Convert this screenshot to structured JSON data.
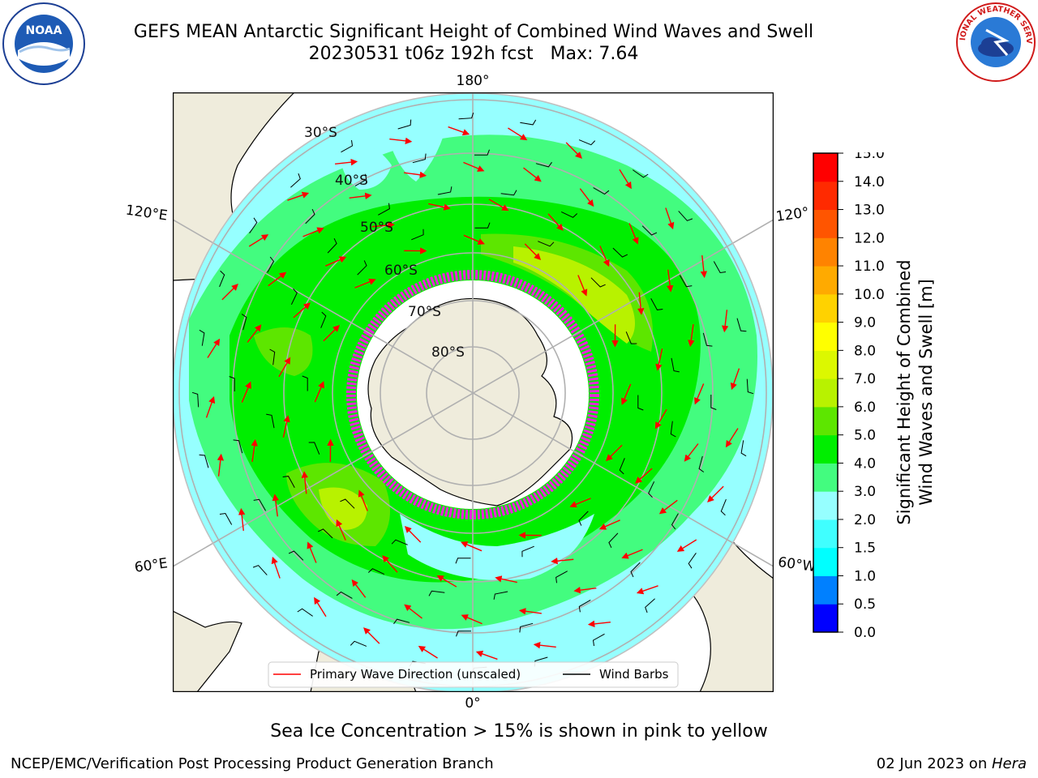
{
  "title": {
    "line1": "GEFS MEAN Antarctic Significant Height of Combined Wind Waves and Swell",
    "line2": "20230531 t06z 192h fcst   Max: 7.64"
  },
  "logos": {
    "left": "NOAA",
    "right": "NATIONAL WEATHER SERVICE"
  },
  "map": {
    "lon_labels": {
      "top": "180°",
      "bottom": "0°",
      "left_upper": "120°E",
      "left_lower": "60°E",
      "right_upper": "120°",
      "right_lower": "60°W"
    },
    "lat_labels": [
      "30°S",
      "40°S",
      "50°S",
      "60°S",
      "70°S",
      "80°S"
    ],
    "legend": {
      "wave": "Primary Wave Direction (unscaled)",
      "wind": "Wind Barbs"
    }
  },
  "colorbar": {
    "label": "Significant Height of Combined Wind Waves and Swell [m]",
    "label_line1": "Significant Height of Combined",
    "label_line2": "Wind Waves and Swell [m]",
    "ticks": [
      "0.0",
      "0.5",
      "1.0",
      "1.5",
      "2.0",
      "3.0",
      "4.0",
      "5.0",
      "6.0",
      "7.0",
      "8.0",
      "9.0",
      "10.0",
      "11.0",
      "12.0",
      "13.0",
      "14.0",
      "15.0"
    ],
    "colors": [
      "#0000ff",
      "#0080ff",
      "#00ffff",
      "#40ffff",
      "#96ffff",
      "#43fc7f",
      "#00ee00",
      "#5de600",
      "#b8f200",
      "#dcf800",
      "#ffff00",
      "#ffd200",
      "#ffaa00",
      "#ff8300",
      "#ff5500",
      "#ff2a00",
      "#ff0000"
    ]
  },
  "ice_note": "Sea Ice Concentration > 15% is shown in pink to yellow",
  "footer": {
    "left": "NCEP/EMC/Verification Post Processing Product Generation Branch",
    "right_date": "02 Jun 2023 on ",
    "right_machine": "Hera"
  }
}
